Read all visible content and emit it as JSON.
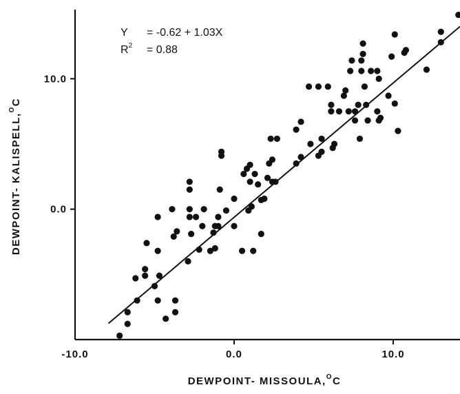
{
  "chart_data": {
    "type": "scatter",
    "title": "",
    "xlabel": "DEWPOINT- MISSOULA,",
    "xlabel_unit_sup": "O",
    "xlabel_unit": "C",
    "ylabel": "DEWPOINT- KALISPELL,",
    "ylabel_unit_sup": "O",
    "ylabel_unit": "C",
    "xlim": [
      -10.0,
      14.2
    ],
    "ylim": [
      -10.0,
      15.3
    ],
    "xticks": [
      {
        "value": -10.0,
        "label": "-10.0"
      },
      {
        "value": 0.0,
        "label": "0.0"
      },
      {
        "value": 10.0,
        "label": "10.0"
      }
    ],
    "yticks": [
      {
        "value": 0.0,
        "label": "0.0"
      },
      {
        "value": 10.0,
        "label": "10.0"
      }
    ],
    "regression": {
      "intercept": -0.62,
      "slope": 1.03,
      "x_range": [
        -7.9,
        14.2
      ]
    },
    "annotations": {
      "eq_lhs": "Y",
      "eq_rhs": "= -0.62 + 1.03X",
      "r2_lhs": "R",
      "r2_sup": "2",
      "r2_rhs": "= 0.88"
    },
    "points": [
      {
        "x": -7.2,
        "y": -9.7
      },
      {
        "x": -6.7,
        "y": -8.8
      },
      {
        "x": -6.7,
        "y": -7.9
      },
      {
        "x": -6.1,
        "y": -7.0
      },
      {
        "x": -6.2,
        "y": -5.3
      },
      {
        "x": -5.6,
        "y": -4.6
      },
      {
        "x": -5.5,
        "y": -2.6
      },
      {
        "x": -5.6,
        "y": -5.1
      },
      {
        "x": -5.0,
        "y": -5.9
      },
      {
        "x": -4.8,
        "y": -7.0
      },
      {
        "x": -4.7,
        "y": -5.1
      },
      {
        "x": -4.8,
        "y": -3.2
      },
      {
        "x": -4.8,
        "y": -0.6
      },
      {
        "x": -4.3,
        "y": -8.4
      },
      {
        "x": -3.7,
        "y": -7.9
      },
      {
        "x": -3.7,
        "y": -7.0
      },
      {
        "x": -3.8,
        "y": -2.1
      },
      {
        "x": -3.6,
        "y": -1.7
      },
      {
        "x": -3.9,
        "y": 0.0
      },
      {
        "x": -2.9,
        "y": -4.0
      },
      {
        "x": -2.7,
        "y": -1.9
      },
      {
        "x": -2.8,
        "y": -0.6
      },
      {
        "x": -2.8,
        "y": 0.0
      },
      {
        "x": -2.8,
        "y": 1.5
      },
      {
        "x": -2.8,
        "y": 2.1
      },
      {
        "x": -2.4,
        "y": -0.6
      },
      {
        "x": -2.2,
        "y": -3.1
      },
      {
        "x": -2.0,
        "y": -1.3
      },
      {
        "x": -1.9,
        "y": 0.0
      },
      {
        "x": -1.5,
        "y": -3.2
      },
      {
        "x": -1.2,
        "y": -3.0
      },
      {
        "x": -1.3,
        "y": -1.8
      },
      {
        "x": -1.2,
        "y": -1.3
      },
      {
        "x": -1.0,
        "y": -1.3
      },
      {
        "x": -1.0,
        "y": -0.6
      },
      {
        "x": -0.9,
        "y": 1.5
      },
      {
        "x": -0.8,
        "y": 4.1
      },
      {
        "x": -0.8,
        "y": 4.4
      },
      {
        "x": -0.5,
        "y": -0.1
      },
      {
        "x": 0.0,
        "y": -1.3
      },
      {
        "x": 0.0,
        "y": 0.8
      },
      {
        "x": 0.5,
        "y": -3.2
      },
      {
        "x": 0.6,
        "y": 2.7
      },
      {
        "x": 0.8,
        "y": 3.1
      },
      {
        "x": 0.9,
        "y": -0.1
      },
      {
        "x": 1.0,
        "y": 3.4
      },
      {
        "x": 1.0,
        "y": 2.1
      },
      {
        "x": 1.1,
        "y": 0.2
      },
      {
        "x": 1.2,
        "y": -3.2
      },
      {
        "x": 1.3,
        "y": 2.7
      },
      {
        "x": 1.5,
        "y": 1.9
      },
      {
        "x": 1.7,
        "y": 0.7
      },
      {
        "x": 1.7,
        "y": -1.9
      },
      {
        "x": 1.9,
        "y": 0.8
      },
      {
        "x": 2.1,
        "y": 2.4
      },
      {
        "x": 2.2,
        "y": 3.5
      },
      {
        "x": 2.3,
        "y": 5.4
      },
      {
        "x": 2.4,
        "y": 3.8
      },
      {
        "x": 2.4,
        "y": 2.1
      },
      {
        "x": 2.6,
        "y": 2.1
      },
      {
        "x": 2.7,
        "y": 5.4
      },
      {
        "x": 3.9,
        "y": 6.1
      },
      {
        "x": 3.9,
        "y": 3.5
      },
      {
        "x": 4.2,
        "y": 4.0
      },
      {
        "x": 4.2,
        "y": 6.7
      },
      {
        "x": 4.7,
        "y": 9.4
      },
      {
        "x": 4.8,
        "y": 5.0
      },
      {
        "x": 5.3,
        "y": 9.4
      },
      {
        "x": 5.3,
        "y": 4.1
      },
      {
        "x": 5.5,
        "y": 4.4
      },
      {
        "x": 5.5,
        "y": 5.4
      },
      {
        "x": 5.9,
        "y": 9.4
      },
      {
        "x": 6.1,
        "y": 8.0
      },
      {
        "x": 6.1,
        "y": 7.5
      },
      {
        "x": 6.2,
        "y": 4.7
      },
      {
        "x": 6.3,
        "y": 5.0
      },
      {
        "x": 6.6,
        "y": 7.5
      },
      {
        "x": 6.9,
        "y": 8.7
      },
      {
        "x": 7.0,
        "y": 9.1
      },
      {
        "x": 7.2,
        "y": 7.5
      },
      {
        "x": 7.3,
        "y": 10.6
      },
      {
        "x": 7.4,
        "y": 11.4
      },
      {
        "x": 7.6,
        "y": 7.5
      },
      {
        "x": 7.6,
        "y": 6.8
      },
      {
        "x": 7.8,
        "y": 8.0
      },
      {
        "x": 7.9,
        "y": 5.4
      },
      {
        "x": 8.0,
        "y": 10.6
      },
      {
        "x": 8.0,
        "y": 11.4
      },
      {
        "x": 8.1,
        "y": 11.9
      },
      {
        "x": 8.1,
        "y": 12.7
      },
      {
        "x": 8.2,
        "y": 9.4
      },
      {
        "x": 8.3,
        "y": 8.0
      },
      {
        "x": 8.4,
        "y": 6.8
      },
      {
        "x": 8.6,
        "y": 10.6
      },
      {
        "x": 9.0,
        "y": 10.6
      },
      {
        "x": 9.0,
        "y": 7.5
      },
      {
        "x": 9.1,
        "y": 6.8
      },
      {
        "x": 9.1,
        "y": 10.0
      },
      {
        "x": 9.2,
        "y": 7.0
      },
      {
        "x": 9.7,
        "y": 8.7
      },
      {
        "x": 9.9,
        "y": 11.7
      },
      {
        "x": 10.1,
        "y": 13.4
      },
      {
        "x": 10.1,
        "y": 8.1
      },
      {
        "x": 10.3,
        "y": 6.0
      },
      {
        "x": 10.7,
        "y": 12.0
      },
      {
        "x": 10.8,
        "y": 12.2
      },
      {
        "x": 12.1,
        "y": 10.7
      },
      {
        "x": 13.0,
        "y": 12.8
      },
      {
        "x": 13.0,
        "y": 13.6
      },
      {
        "x": 14.1,
        "y": 14.9
      }
    ]
  }
}
